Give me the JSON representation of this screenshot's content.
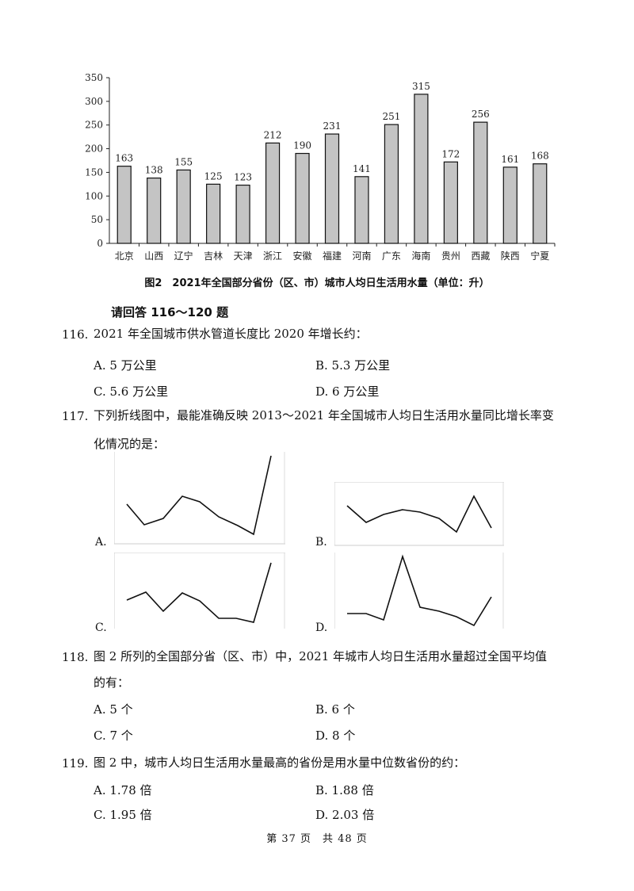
{
  "chart_data": {
    "type": "bar",
    "categories": [
      "北京",
      "山西",
      "辽宁",
      "吉林",
      "天津",
      "浙江",
      "安徽",
      "福建",
      "河南",
      "广东",
      "海南",
      "贵州",
      "西藏",
      "陕西",
      "宁夏"
    ],
    "values": [
      163,
      138,
      155,
      125,
      123,
      212,
      190,
      231,
      141,
      251,
      315,
      172,
      256,
      161,
      168
    ],
    "title": "图2　2021年全国部分省份（区、市）城市人均日生活用水量（单位：升）",
    "yticks": [
      0,
      50,
      100,
      150,
      200,
      250,
      300,
      350
    ],
    "ylim": [
      0,
      350
    ]
  },
  "section_heading": "请回答 116～120 题",
  "questions": [
    {
      "number": "116.",
      "lines": [
        "2021 年全国城市供水管道长度比 2020 年增长约："
      ],
      "options": [
        "A. 5 万公里",
        "B. 5.3 万公里",
        "C. 5.6 万公里",
        "D. 6 万公里"
      ]
    },
    {
      "number": "117.",
      "lines": [
        "下列折线图中，最能准确反映 2013～2021 年全国城市人均日生活用水量同比增长率变",
        "化情况的是："
      ],
      "options": [
        "A.",
        "B.",
        "C.",
        "D."
      ]
    },
    {
      "number": "118.",
      "lines": [
        "图 2 所列的全国部分省（区、市）中，2021 年城市人均日生活用水量超过全国平均值",
        "的有："
      ],
      "options": [
        "A. 5 个",
        "B. 6 个",
        "C. 7 个",
        "D. 8 个"
      ]
    },
    {
      "number": "119.",
      "lines": [
        "图 2 中，城市人均日生活用水量最高的省份是用水量中位数省份的约："
      ],
      "options": [
        "A. 1.78 倍",
        "B. 1.88 倍",
        "C. 1.95 倍",
        "D. 2.03 倍"
      ]
    }
  ],
  "footer": "第 37 页　共 48 页"
}
